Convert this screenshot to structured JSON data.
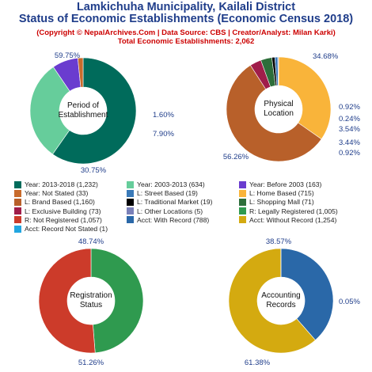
{
  "header": {
    "title_line1": "Lamkichuha Municipality, Kailali District",
    "title_line2": "Status of Economic Establishments (Economic Census 2018)",
    "subtitle": "(Copyright © NepalArchives.Com | Data Source: CBS | Creator/Analyst: Milan Karki)",
    "total_label": "Total Economic Establishments: 2,062"
  },
  "chart_data": [
    {
      "type": "pie",
      "title": "Period of\nEstablishment",
      "labels": [
        "Year: 2013-2018",
        "Year: 2003-2013",
        "Year: Before 2003",
        "Year: Not Stated"
      ],
      "values": [
        1232,
        634,
        163,
        33
      ],
      "percent_labels": [
        "59.75%",
        "30.75%",
        "7.90%",
        "1.60%"
      ],
      "colors": [
        "#006b5b",
        "#66cd9b",
        "#6a3ccf",
        "#c86b2c"
      ]
    },
    {
      "type": "pie",
      "title": "Physical\nLocation",
      "labels": [
        "L: Home Based",
        "L: Brand Based",
        "L: Exclusive Building",
        "L: Shopping Mall",
        "L: Traditional Market",
        "L: Street Based",
        "L: Other Locations"
      ],
      "values": [
        715,
        1160,
        73,
        71,
        19,
        19,
        5
      ],
      "percent_labels": [
        "34.68%",
        "56.26%",
        "3.54%",
        "3.44%",
        "0.92%",
        "0.92%",
        "0.24%"
      ],
      "colors": [
        "#f9b43a",
        "#b8602a",
        "#a01d4a",
        "#2d6e3a",
        "#000000",
        "#3a7ab8",
        "#7a80b8"
      ]
    },
    {
      "type": "pie",
      "title": "Registration\nStatus",
      "labels": [
        "R: Legally Registered",
        "R: Not Registered"
      ],
      "values": [
        1005,
        1057
      ],
      "percent_labels": [
        "48.74%",
        "51.26%"
      ],
      "colors": [
        "#2f9a4f",
        "#cc3b2a"
      ]
    },
    {
      "type": "pie",
      "title": "Accounting\nRecords",
      "labels": [
        "Acct: With Record",
        "Acct: Without Record",
        "Acct: Record Not Stated"
      ],
      "values": [
        788,
        1254,
        1
      ],
      "percent_labels": [
        "38.57%",
        "61.38%",
        "0.05%"
      ],
      "colors": [
        "#2a68a8",
        "#d4aa10",
        "#22a6e0"
      ]
    }
  ],
  "legend": [
    {
      "label": "Year: 2013-2018 (1,232)",
      "color": "#006b5b"
    },
    {
      "label": "Year: 2003-2013 (634)",
      "color": "#66cd9b"
    },
    {
      "label": "Year: Before 2003 (163)",
      "color": "#6a3ccf"
    },
    {
      "label": "Year: Not Stated (33)",
      "color": "#c86b2c"
    },
    {
      "label": "L: Street Based (19)",
      "color": "#3a7ab8"
    },
    {
      "label": "L: Home Based (715)",
      "color": "#f9b43a"
    },
    {
      "label": "L: Brand Based (1,160)",
      "color": "#b8602a"
    },
    {
      "label": "L: Traditional Market (19)",
      "color": "#000000"
    },
    {
      "label": "L: Shopping Mall (71)",
      "color": "#2d6e3a"
    },
    {
      "label": "L: Exclusive Building (73)",
      "color": "#a01d4a"
    },
    {
      "label": "L: Other Locations (5)",
      "color": "#7a80b8"
    },
    {
      "label": "R: Legally Registered (1,005)",
      "color": "#2f9a4f"
    },
    {
      "label": "R: Not Registered (1,057)",
      "color": "#cc3b2a"
    },
    {
      "label": "Acct: With Record (788)",
      "color": "#2a68a8"
    },
    {
      "label": "Acct: Without Record (1,254)",
      "color": "#d4aa10"
    },
    {
      "label": "Acct: Record Not Stated (1)",
      "color": "#22a6e0"
    }
  ],
  "colors": {
    "title": "#1f3d8a",
    "subtitle": "#cc0000",
    "pct_label": "#1f3d8a"
  }
}
